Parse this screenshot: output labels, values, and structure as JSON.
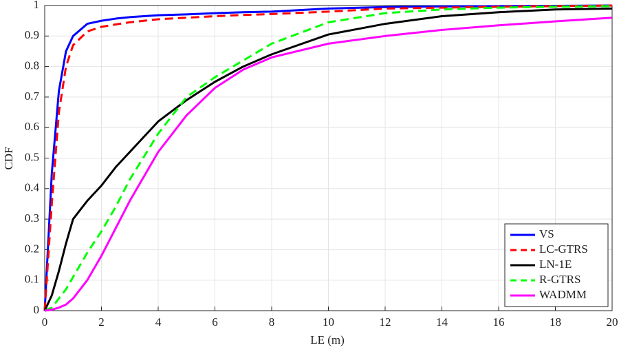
{
  "chart_data": {
    "type": "line",
    "xlabel": "LE (m)",
    "ylabel": "CDF",
    "x": [
      0,
      0.25,
      0.5,
      0.75,
      1,
      1.5,
      2,
      2.5,
      3,
      4,
      5,
      6,
      7,
      8,
      10,
      12,
      14,
      16,
      18,
      20
    ],
    "series": [
      {
        "name": "VS",
        "color": "#0000ff",
        "style": "solid",
        "values": [
          0,
          0.45,
          0.72,
          0.85,
          0.9,
          0.94,
          0.95,
          0.957,
          0.962,
          0.968,
          0.971,
          0.975,
          0.978,
          0.98,
          0.99,
          0.995,
          0.997,
          0.998,
          0.999,
          1
        ]
      },
      {
        "name": "LC-GTRS",
        "color": "#ff0000",
        "style": "dashed",
        "values": [
          0,
          0.35,
          0.65,
          0.8,
          0.87,
          0.915,
          0.93,
          0.938,
          0.945,
          0.955,
          0.96,
          0.965,
          0.969,
          0.972,
          0.98,
          0.99,
          0.993,
          0.996,
          0.998,
          1
        ]
      },
      {
        "name": "LN-1E",
        "color": "#000000",
        "style": "solid",
        "values": [
          0,
          0.05,
          0.13,
          0.22,
          0.3,
          0.36,
          0.41,
          0.47,
          0.52,
          0.62,
          0.69,
          0.75,
          0.8,
          0.84,
          0.905,
          0.94,
          0.965,
          0.978,
          0.987,
          0.99
        ]
      },
      {
        "name": "R-GTRS",
        "color": "#00ff00",
        "style": "dashed",
        "values": [
          0,
          0.01,
          0.04,
          0.07,
          0.11,
          0.19,
          0.26,
          0.34,
          0.43,
          0.58,
          0.7,
          0.765,
          0.82,
          0.875,
          0.945,
          0.975,
          0.987,
          0.993,
          0.996,
          0.998
        ]
      },
      {
        "name": "WADMM",
        "color": "#ff00ff",
        "style": "solid",
        "values": [
          0,
          0.003,
          0.01,
          0.02,
          0.04,
          0.1,
          0.18,
          0.27,
          0.36,
          0.52,
          0.64,
          0.73,
          0.79,
          0.83,
          0.875,
          0.9,
          0.92,
          0.935,
          0.948,
          0.96
        ]
      }
    ],
    "xlim": [
      0,
      20
    ],
    "ylim": [
      0,
      1
    ],
    "xticks": [
      0,
      2,
      4,
      6,
      8,
      10,
      12,
      14,
      16,
      18,
      20
    ],
    "yticks": [
      0,
      0.1,
      0.2,
      0.3,
      0.4,
      0.5,
      0.6,
      0.7,
      0.8,
      0.9,
      1
    ],
    "grid": true,
    "legend": "bottom-right"
  }
}
